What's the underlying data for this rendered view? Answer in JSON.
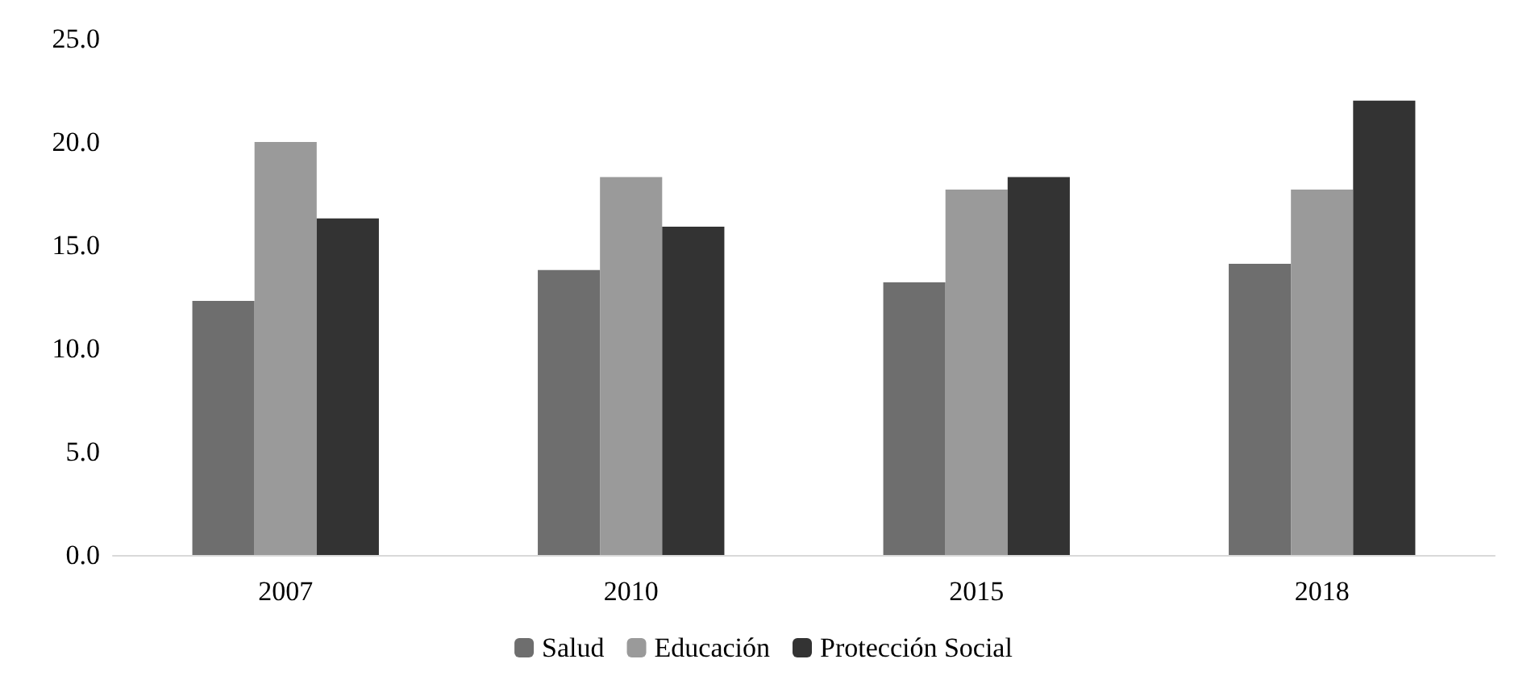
{
  "chart_data": {
    "type": "bar",
    "categories": [
      "2007",
      "2010",
      "2015",
      "2018"
    ],
    "series": [
      {
        "name": "Salud",
        "color": "#6e6e6e",
        "values": [
          12.3,
          13.8,
          13.2,
          14.1
        ]
      },
      {
        "name": "Educación",
        "color": "#9a9a9a",
        "values": [
          20.0,
          18.3,
          17.7,
          17.7
        ]
      },
      {
        "name": "Protección Social",
        "color": "#333333",
        "values": [
          16.3,
          15.9,
          18.3,
          22.0
        ]
      }
    ],
    "ylim": [
      0,
      25
    ],
    "yticks": [
      {
        "value": 0,
        "label": "0.0"
      },
      {
        "value": 5,
        "label": "5.0"
      },
      {
        "value": 10,
        "label": "10.0"
      },
      {
        "value": 15,
        "label": "15.0"
      },
      {
        "value": 20,
        "label": "20.0"
      },
      {
        "value": 25,
        "label": "25.0"
      }
    ],
    "grid": false,
    "legend": "bottom"
  }
}
